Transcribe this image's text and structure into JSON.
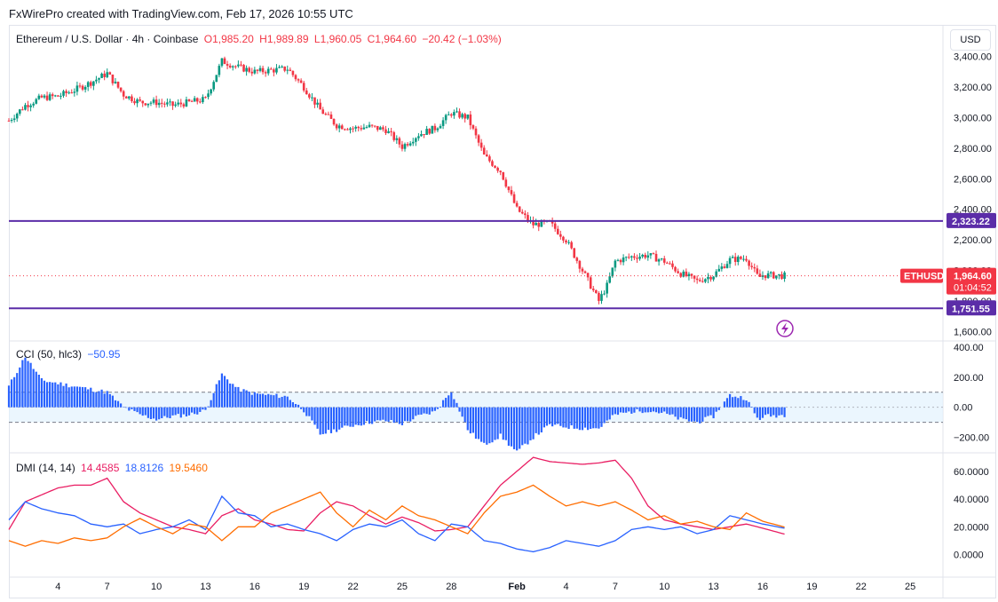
{
  "header": {
    "attribution": "FxWirePro created with TradingView.com, Feb 17, 2026 10:55 UTC"
  },
  "price_legend": {
    "symbol": "Ethereum / U.S. Dollar · 4h · Coinbase",
    "open": "O1,985.20",
    "high": "H1,989.89",
    "low": "L1,960.05",
    "close": "C1,964.60",
    "change": "−20.42 (−1.03%)"
  },
  "currency_button": "USD",
  "cci_legend": {
    "label": "CCI (50, hlc3)",
    "value": "−50.95"
  },
  "dmi_legend": {
    "label": "DMI (14, 14)",
    "plus": "14.4585",
    "minus": "18.8126",
    "adx": "19.5460"
  },
  "colors": {
    "up": "#089981",
    "down": "#f23645",
    "level": "#5b2da8",
    "cci": "#2962ff",
    "plus_di": "#2962ff",
    "minus_di": "#f23645",
    "adx": "#ff6d00"
  },
  "chart_data": [
    {
      "type": "candlestick",
      "title": "Ethereum / U.S. Dollar · 4h · Coinbase",
      "ylim": [
        1550,
        3450
      ],
      "yticks": [
        "3,400.00",
        "3,200.00",
        "3,000.00",
        "2,800.00",
        "2,600.00",
        "2,400.00",
        "2,200.00",
        "2,000.00",
        "1,800.00",
        "1,600.00"
      ],
      "xticks": [
        "4",
        "7",
        "10",
        "13",
        "16",
        "19",
        "22",
        "25",
        "28",
        "Feb",
        "4",
        "7",
        "10",
        "13",
        "16",
        "19",
        "22",
        "25"
      ],
      "path": [
        [
          "Jan 1 00:00",
          2980
        ],
        [
          "Jan 2 00:00",
          3080
        ],
        [
          "Jan 3 00:00",
          3130
        ],
        [
          "Jan 4 00:00",
          3140
        ],
        [
          "Jan 5 00:00",
          3180
        ],
        [
          "Jan 6 00:00",
          3230
        ],
        [
          "Jan 7 00:00",
          3290
        ],
        [
          "Jan 8 00:00",
          3150
        ],
        [
          "Jan 9 00:00",
          3100
        ],
        [
          "Jan 10 00:00",
          3100
        ],
        [
          "Jan 11 00:00",
          3080
        ],
        [
          "Jan 12 00:00",
          3100
        ],
        [
          "Jan 13 00:00",
          3120
        ],
        [
          "Jan 14 00:00",
          3370
        ],
        [
          "Jan 15 00:00",
          3330
        ],
        [
          "Jan 16 00:00",
          3300
        ],
        [
          "Jan 17 00:00",
          3310
        ],
        [
          "Jan 18 00:00",
          3320
        ],
        [
          "Jan 19 00:00",
          3200
        ],
        [
          "Jan 20 00:00",
          3050
        ],
        [
          "Jan 21 00:00",
          2950
        ],
        [
          "Jan 22 00:00",
          2930
        ],
        [
          "Jan 23 00:00",
          2940
        ],
        [
          "Jan 24 00:00",
          2920
        ],
        [
          "Jan 25 00:00",
          2810
        ],
        [
          "Jan 26 00:00",
          2890
        ],
        [
          "Jan 27 00:00",
          2930
        ],
        [
          "Jan 28 00:00",
          3030
        ],
        [
          "Jan 29 00:00",
          3000
        ],
        [
          "Jan 30 00:00",
          2750
        ],
        [
          "Jan 31 00:00",
          2650
        ],
        [
          "Feb 1 00:00",
          2400
        ],
        [
          "Feb 2 00:00",
          2300
        ],
        [
          "Feb 3 00:00",
          2310
        ],
        [
          "Feb 4 00:00",
          2200
        ],
        [
          "Feb 5 00:00",
          2000
        ],
        [
          "Feb 6 00:00",
          1800
        ],
        [
          "Feb 6 12:00",
          1900
        ],
        [
          "Feb 7 00:00",
          2060
        ],
        [
          "Feb 8 00:00",
          2090
        ],
        [
          "Feb 9 00:00",
          2100
        ],
        [
          "Feb 10 00:00",
          2060
        ],
        [
          "Feb 11 00:00",
          1980
        ],
        [
          "Feb 12 00:00",
          1930
        ],
        [
          "Feb 13 00:00",
          1970
        ],
        [
          "Feb 14 00:00",
          2070
        ],
        [
          "Feb 15 00:00",
          2080
        ],
        [
          "Feb 15 18:00",
          1950
        ],
        [
          "Feb 16 00:00",
          1970
        ],
        [
          "Feb 17 10:00",
          1964.6
        ]
      ],
      "levels": [
        2323.22,
        1751.55
      ],
      "level_labels": [
        "2,323.22",
        "1,751.55"
      ],
      "last_price": 1964.6,
      "price_tag": {
        "symbol": "ETHUSD",
        "price": "1,964.60",
        "countdown": "01:04:52"
      }
    },
    {
      "type": "histogram",
      "title": "CCI (50, hlc3)",
      "ylim": [
        -280,
        430
      ],
      "yticks": [
        "400.00",
        "200.00",
        "0.00",
        "−200.00"
      ],
      "band": [
        100,
        -100
      ],
      "path": [
        [
          "Jan 1 00:00",
          140
        ],
        [
          "Jan 2 00:00",
          340
        ],
        [
          "Jan 3 00:00",
          180
        ],
        [
          "Jan 4 00:00",
          160
        ],
        [
          "Jan 5 00:00",
          140
        ],
        [
          "Jan 6 00:00",
          120
        ],
        [
          "Jan 7 00:00",
          100
        ],
        [
          "Jan 8 00:00",
          0
        ],
        [
          "Jan 9 00:00",
          -50
        ],
        [
          "Jan 10 00:00",
          -80
        ],
        [
          "Jan 11 00:00",
          -60
        ],
        [
          "Jan 12 00:00",
          -50
        ],
        [
          "Jan 13 00:00",
          -20
        ],
        [
          "Jan 14 00:00",
          220
        ],
        [
          "Jan 15 00:00",
          120
        ],
        [
          "Jan 16 00:00",
          90
        ],
        [
          "Jan 17 00:00",
          80
        ],
        [
          "Jan 18 00:00",
          70
        ],
        [
          "Jan 19 00:00",
          -20
        ],
        [
          "Jan 20 00:00",
          -180
        ],
        [
          "Jan 21 00:00",
          -150
        ],
        [
          "Jan 22 00:00",
          -120
        ],
        [
          "Jan 23 00:00",
          -100
        ],
        [
          "Jan 24 00:00",
          -90
        ],
        [
          "Jan 25 00:00",
          -110
        ],
        [
          "Jan 26 00:00",
          -60
        ],
        [
          "Jan 27 00:00",
          -30
        ],
        [
          "Jan 28 00:00",
          110
        ],
        [
          "Jan 29 00:00",
          -150
        ],
        [
          "Jan 30 00:00",
          -250
        ],
        [
          "Jan 31 00:00",
          -190
        ],
        [
          "Feb 1 00:00",
          -300
        ],
        [
          "Feb 2 00:00",
          -200
        ],
        [
          "Feb 3 00:00",
          -120
        ],
        [
          "Feb 4 00:00",
          -130
        ],
        [
          "Feb 5 00:00",
          -140
        ],
        [
          "Feb 6 00:00",
          -140
        ],
        [
          "Feb 7 00:00",
          -50
        ],
        [
          "Feb 8 00:00",
          -30
        ],
        [
          "Feb 9 00:00",
          -20
        ],
        [
          "Feb 10 00:00",
          -40
        ],
        [
          "Feb 11 00:00",
          -80
        ],
        [
          "Feb 12 00:00",
          -100
        ],
        [
          "Feb 13 00:00",
          -60
        ],
        [
          "Feb 14 00:00",
          80
        ],
        [
          "Feb 15 00:00",
          60
        ],
        [
          "Feb 15 18:00",
          -90
        ],
        [
          "Feb 16 00:00",
          -60
        ],
        [
          "Feb 17 10:00",
          -50.95
        ]
      ]
    },
    {
      "type": "line",
      "title": "DMI (14, 14)",
      "ylim": [
        -15,
        72
      ],
      "yticks": [
        "60.0000",
        "40.0000",
        "20.0000",
        "0.0000"
      ],
      "series": [
        {
          "name": "14.4585",
          "color": "#e91e63",
          "path": [
            [
              "Jan 1 00:00",
              18
            ],
            [
              "Jan 2 00:00",
              38
            ],
            [
              "Jan 3 00:00",
              43
            ],
            [
              "Jan 4 00:00",
              48
            ],
            [
              "Jan 5 00:00",
              50
            ],
            [
              "Jan 6 00:00",
              50
            ],
            [
              "Jan 7 00:00",
              55
            ],
            [
              "Jan 8 00:00",
              38
            ],
            [
              "Jan 9 00:00",
              30
            ],
            [
              "Jan 10 00:00",
              25
            ],
            [
              "Jan 11 00:00",
              20
            ],
            [
              "Jan 12 00:00",
              18
            ],
            [
              "Jan 13 00:00",
              15
            ],
            [
              "Jan 14 00:00",
              28
            ],
            [
              "Jan 15 00:00",
              33
            ],
            [
              "Jan 16 00:00",
              25
            ],
            [
              "Jan 17 00:00",
              22
            ],
            [
              "Jan 18 00:00",
              18
            ],
            [
              "Jan 19 00:00",
              17
            ],
            [
              "Jan 20 00:00",
              30
            ],
            [
              "Jan 21 00:00",
              38
            ],
            [
              "Jan 22 00:00",
              35
            ],
            [
              "Jan 23 00:00",
              28
            ],
            [
              "Jan 24 00:00",
              22
            ],
            [
              "Jan 25 00:00",
              27
            ],
            [
              "Jan 26 00:00",
              23
            ],
            [
              "Jan 27 00:00",
              17
            ],
            [
              "Jan 28 00:00",
              18
            ],
            [
              "Jan 29 00:00",
              20
            ],
            [
              "Jan 30 00:00",
              35
            ],
            [
              "Jan 31 00:00",
              50
            ],
            [
              "Feb 1 00:00",
              60
            ],
            [
              "Feb 2 00:00",
              70
            ],
            [
              "Feb 3 00:00",
              67
            ],
            [
              "Feb 4 00:00",
              66
            ],
            [
              "Feb 5 00:00",
              65
            ],
            [
              "Feb 6 00:00",
              66
            ],
            [
              "Feb 7 00:00",
              68
            ],
            [
              "Feb 8 00:00",
              55
            ],
            [
              "Feb 9 00:00",
              35
            ],
            [
              "Feb 10 00:00",
              25
            ],
            [
              "Feb 11 00:00",
              22
            ],
            [
              "Feb 12 00:00",
              20
            ],
            [
              "Feb 13 00:00",
              18
            ],
            [
              "Feb 14 00:00",
              20
            ],
            [
              "Feb 15 00:00",
              22
            ],
            [
              "Feb 16 00:00",
              19
            ],
            [
              "Feb 17 10:00",
              14.4585
            ]
          ]
        },
        {
          "name": "18.8126",
          "color": "#2962ff",
          "path": [
            [
              "Jan 1 00:00",
              25
            ],
            [
              "Jan 2 00:00",
              38
            ],
            [
              "Jan 3 00:00",
              33
            ],
            [
              "Jan 4 00:00",
              30
            ],
            [
              "Jan 5 00:00",
              28
            ],
            [
              "Jan 6 00:00",
              22
            ],
            [
              "Jan 7 00:00",
              20
            ],
            [
              "Jan 8 00:00",
              22
            ],
            [
              "Jan 9 00:00",
              15
            ],
            [
              "Jan 10 00:00",
              18
            ],
            [
              "Jan 11 00:00",
              20
            ],
            [
              "Jan 12 00:00",
              25
            ],
            [
              "Jan 13 00:00",
              18
            ],
            [
              "Jan 14 00:00",
              42
            ],
            [
              "Jan 15 00:00",
              30
            ],
            [
              "Jan 16 00:00",
              28
            ],
            [
              "Jan 17 00:00",
              20
            ],
            [
              "Jan 18 00:00",
              22
            ],
            [
              "Jan 19 00:00",
              18
            ],
            [
              "Jan 20 00:00",
              15
            ],
            [
              "Jan 21 00:00",
              10
            ],
            [
              "Jan 22 00:00",
              18
            ],
            [
              "Jan 23 00:00",
              22
            ],
            [
              "Jan 24 00:00",
              20
            ],
            [
              "Jan 25 00:00",
              25
            ],
            [
              "Jan 26 00:00",
              15
            ],
            [
              "Jan 27 00:00",
              10
            ],
            [
              "Jan 28 00:00",
              22
            ],
            [
              "Jan 29 00:00",
              20
            ],
            [
              "Jan 30 00:00",
              10
            ],
            [
              "Jan 31 00:00",
              8
            ],
            [
              "Feb 1 00:00",
              4
            ],
            [
              "Feb 2 00:00",
              2
            ],
            [
              "Feb 3 00:00",
              5
            ],
            [
              "Feb 4 00:00",
              10
            ],
            [
              "Feb 5 00:00",
              8
            ],
            [
              "Feb 6 00:00",
              6
            ],
            [
              "Feb 7 00:00",
              10
            ],
            [
              "Feb 8 00:00",
              18
            ],
            [
              "Feb 9 00:00",
              20
            ],
            [
              "Feb 10 00:00",
              18
            ],
            [
              "Feb 11 00:00",
              20
            ],
            [
              "Feb 12 00:00",
              15
            ],
            [
              "Feb 13 00:00",
              18
            ],
            [
              "Feb 14 00:00",
              28
            ],
            [
              "Feb 15 00:00",
              25
            ],
            [
              "Feb 16 00:00",
              22
            ],
            [
              "Feb 17 10:00",
              18.8126
            ]
          ]
        },
        {
          "name": "19.5460",
          "color": "#ff6d00",
          "path": [
            [
              "Jan 1 00:00",
              10
            ],
            [
              "Jan 2 00:00",
              6
            ],
            [
              "Jan 3 00:00",
              10
            ],
            [
              "Jan 4 00:00",
              8
            ],
            [
              "Jan 5 00:00",
              12
            ],
            [
              "Jan 6 00:00",
              10
            ],
            [
              "Jan 7 00:00",
              12
            ],
            [
              "Jan 8 00:00",
              20
            ],
            [
              "Jan 9 00:00",
              26
            ],
            [
              "Jan 10 00:00",
              20
            ],
            [
              "Jan 11 00:00",
              15
            ],
            [
              "Jan 12 00:00",
              22
            ],
            [
              "Jan 13 00:00",
              20
            ],
            [
              "Jan 14 00:00",
              10
            ],
            [
              "Jan 15 00:00",
              20
            ],
            [
              "Jan 16 00:00",
              20
            ],
            [
              "Jan 17 00:00",
              30
            ],
            [
              "Jan 18 00:00",
              35
            ],
            [
              "Jan 19 00:00",
              40
            ],
            [
              "Jan 20 00:00",
              45
            ],
            [
              "Jan 21 00:00",
              30
            ],
            [
              "Jan 22 00:00",
              20
            ],
            [
              "Jan 23 00:00",
              32
            ],
            [
              "Jan 24 00:00",
              25
            ],
            [
              "Jan 25 00:00",
              35
            ],
            [
              "Jan 26 00:00",
              28
            ],
            [
              "Jan 27 00:00",
              25
            ],
            [
              "Jan 28 00:00",
              20
            ],
            [
              "Jan 29 00:00",
              15
            ],
            [
              "Jan 30 00:00",
              30
            ],
            [
              "Jan 31 00:00",
              42
            ],
            [
              "Feb 1 00:00",
              45
            ],
            [
              "Feb 2 00:00",
              50
            ],
            [
              "Feb 3 00:00",
              42
            ],
            [
              "Feb 4 00:00",
              35
            ],
            [
              "Feb 5 00:00",
              38
            ],
            [
              "Feb 6 00:00",
              35
            ],
            [
              "Feb 7 00:00",
              38
            ],
            [
              "Feb 8 00:00",
              32
            ],
            [
              "Feb 9 00:00",
              25
            ],
            [
              "Feb 10 00:00",
              28
            ],
            [
              "Feb 11 00:00",
              22
            ],
            [
              "Feb 12 00:00",
              24
            ],
            [
              "Feb 13 00:00",
              20
            ],
            [
              "Feb 14 00:00",
              18
            ],
            [
              "Feb 15 00:00",
              30
            ],
            [
              "Feb 16 00:00",
              24
            ],
            [
              "Feb 17 10:00",
              19.546
            ]
          ]
        }
      ]
    }
  ]
}
